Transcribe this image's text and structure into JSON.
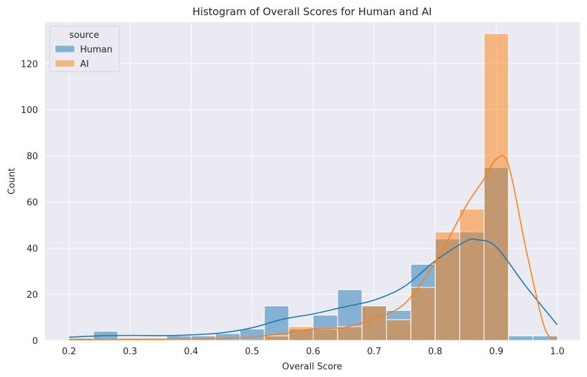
{
  "chart_data": {
    "type": "bar",
    "title": "Histogram of Overall Scores for Human and AI",
    "xlabel": "Overall Score",
    "ylabel": "Count",
    "xlim": [
      0.2,
      1.0
    ],
    "ylim": [
      0,
      138
    ],
    "xticks": [
      "0.2",
      "0.3",
      "0.4",
      "0.5",
      "0.6",
      "0.7",
      "0.8",
      "0.9",
      "1.0"
    ],
    "yticks": [
      "0",
      "20",
      "40",
      "60",
      "80",
      "100",
      "120"
    ],
    "grid": true,
    "legend": {
      "title": "source",
      "placement": "top-left"
    },
    "bin_edges": [
      0.2,
      0.24,
      0.28,
      0.32,
      0.36,
      0.4,
      0.44,
      0.48,
      0.52,
      0.56,
      0.6,
      0.64,
      0.68,
      0.72,
      0.76,
      0.8,
      0.84,
      0.88,
      0.92,
      0.96,
      1.0
    ],
    "series": [
      {
        "name": "Human",
        "color": "#1f77b4",
        "values": [
          1,
          4,
          1,
          1,
          2,
          2,
          3,
          5,
          15,
          5,
          11,
          22,
          15,
          13,
          33,
          44,
          47,
          75,
          2,
          2
        ],
        "kde": [
          [
            0.2,
            1.4
          ],
          [
            0.25,
            2.0
          ],
          [
            0.3,
            2.2
          ],
          [
            0.35,
            2.1
          ],
          [
            0.4,
            2.4
          ],
          [
            0.45,
            3.3
          ],
          [
            0.5,
            5.5
          ],
          [
            0.55,
            9.2
          ],
          [
            0.6,
            11.5
          ],
          [
            0.65,
            14.5
          ],
          [
            0.7,
            17.5
          ],
          [
            0.75,
            23.5
          ],
          [
            0.8,
            34.5
          ],
          [
            0.85,
            43.0
          ],
          [
            0.87,
            43.6
          ],
          [
            0.9,
            40.5
          ],
          [
            0.95,
            23.0
          ],
          [
            1.0,
            6.8
          ]
        ]
      },
      {
        "name": "AI",
        "color": "#ff7f0e",
        "values": [
          0,
          0,
          1,
          1,
          0,
          0,
          0,
          0,
          2,
          6,
          5,
          6,
          15,
          9,
          23,
          47,
          57,
          133,
          0,
          0
        ],
        "kde": [
          [
            0.2,
            0.3
          ],
          [
            0.3,
            0.4
          ],
          [
            0.4,
            0.6
          ],
          [
            0.45,
            0.9
          ],
          [
            0.5,
            1.5
          ],
          [
            0.55,
            3.0
          ],
          [
            0.6,
            5.0
          ],
          [
            0.65,
            5.6
          ],
          [
            0.7,
            9.5
          ],
          [
            0.75,
            16.0
          ],
          [
            0.8,
            34.0
          ],
          [
            0.85,
            58.0
          ],
          [
            0.88,
            70.0
          ],
          [
            0.9,
            78.5
          ],
          [
            0.92,
            76.0
          ],
          [
            0.95,
            38.0
          ],
          [
            0.98,
            5.0
          ],
          [
            1.0,
            1.0
          ]
        ]
      }
    ]
  }
}
